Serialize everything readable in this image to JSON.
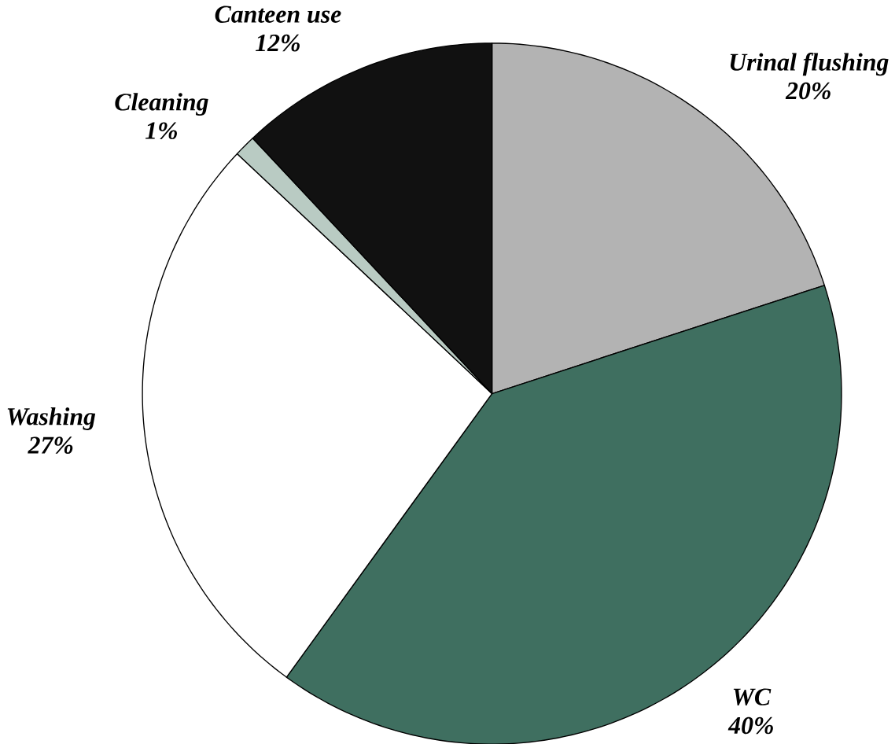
{
  "chart_data": {
    "type": "pie",
    "categories": [
      "Urinal flushing",
      "WC",
      "Washing",
      "Cleaning",
      "Canteen use"
    ],
    "values": [
      20,
      40,
      27,
      1,
      12
    ],
    "value_labels": [
      "20%",
      "40%",
      "27%",
      "1%",
      "12%"
    ],
    "colors": [
      "#b3b3b3",
      "#3f6f60",
      "#ffffff",
      "#b9cbc3",
      "#111111"
    ]
  }
}
